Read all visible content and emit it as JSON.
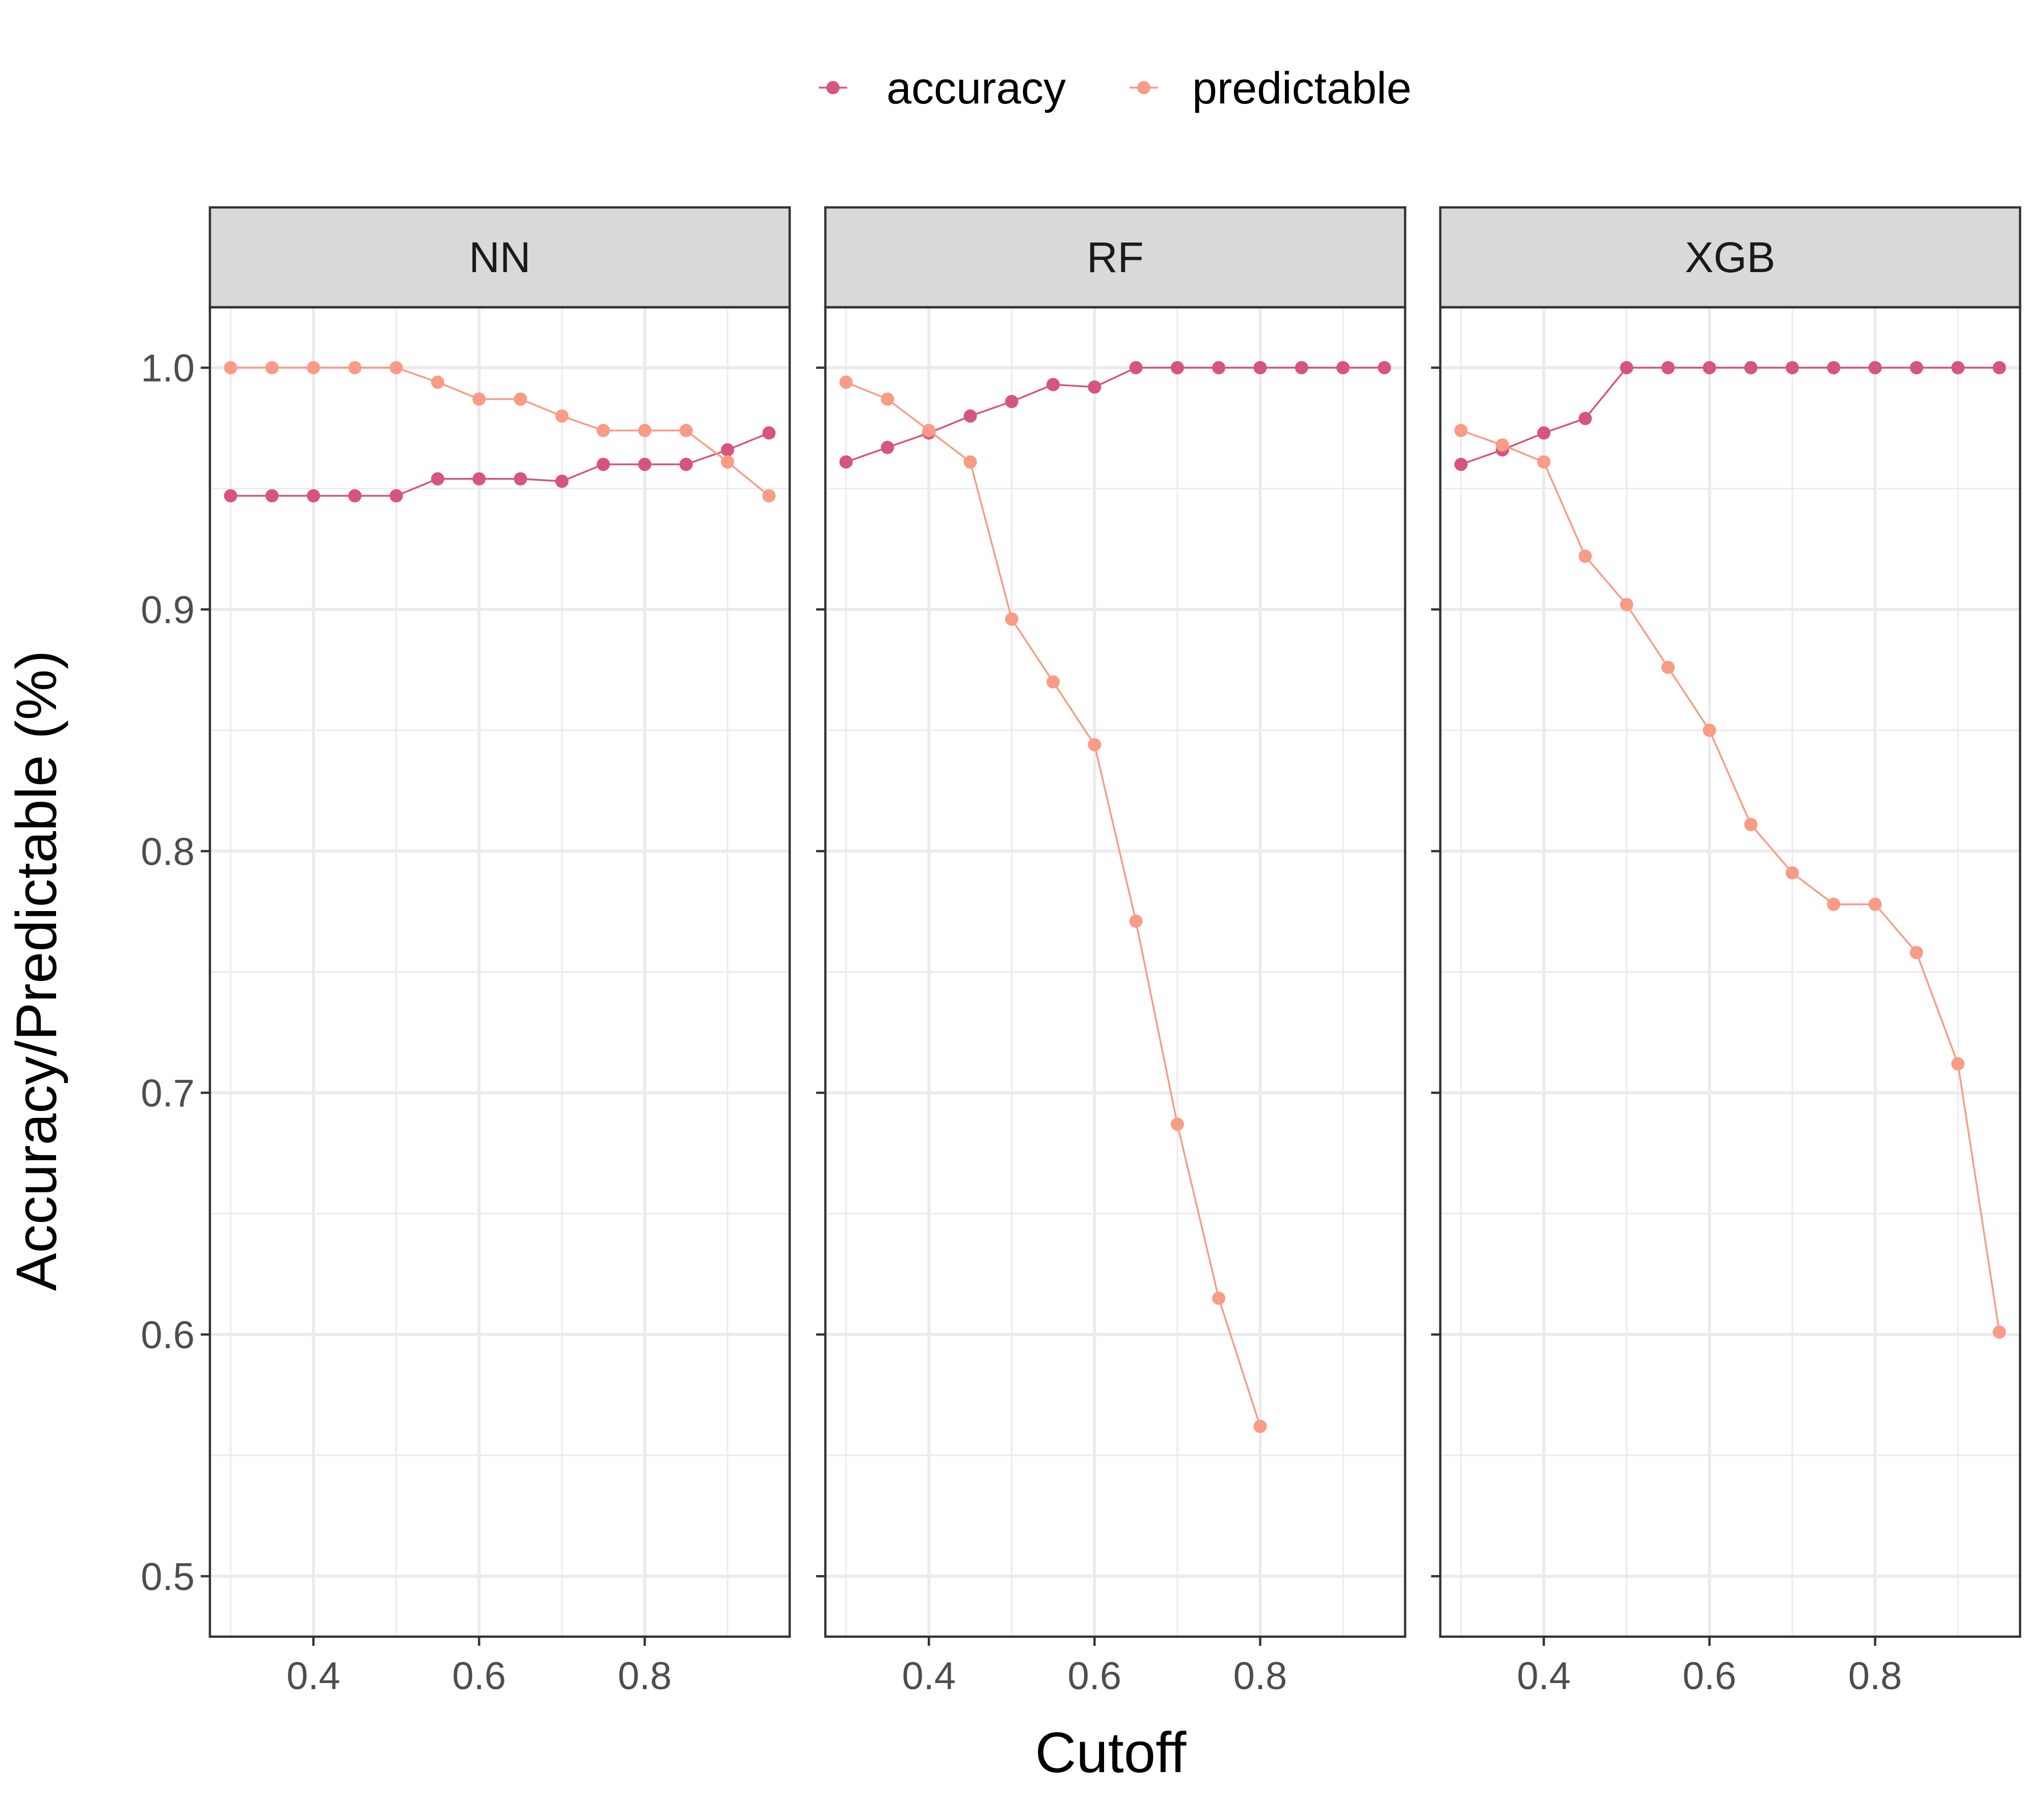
{
  "chart_data": {
    "type": "line",
    "facet_variable": "model",
    "xlabel": "Cutoff",
    "ylabel": "Accuracy/Predictable (%)",
    "xlim": [
      0.275,
      0.975
    ],
    "ylim": [
      0.475,
      1.025
    ],
    "x_ticks": [
      0.4,
      0.6,
      0.8
    ],
    "x_tick_labels": [
      "0.4",
      "0.6",
      "0.8"
    ],
    "y_ticks": [
      0.5,
      0.6,
      0.7,
      0.8,
      0.9,
      1.0
    ],
    "y_tick_labels": [
      "0.5",
      "0.6",
      "0.7",
      "0.8",
      "0.9",
      "1.0"
    ],
    "grid": true,
    "legend_position": "top",
    "series_styles": [
      {
        "name": "accuracy",
        "color": "#d6557a"
      },
      {
        "name": "predictable",
        "color": "#f99b85"
      }
    ],
    "panels": [
      {
        "title": "NN",
        "series": [
          {
            "name": "accuracy",
            "x": [
              0.3,
              0.35,
              0.4,
              0.45,
              0.5,
              0.55,
              0.6,
              0.65,
              0.7,
              0.75,
              0.8,
              0.85,
              0.9,
              0.95
            ],
            "y": [
              0.947,
              0.947,
              0.947,
              0.947,
              0.947,
              0.954,
              0.954,
              0.954,
              0.953,
              0.96,
              0.96,
              0.96,
              0.966,
              0.973
            ]
          },
          {
            "name": "predictable",
            "x": [
              0.3,
              0.35,
              0.4,
              0.45,
              0.5,
              0.55,
              0.6,
              0.65,
              0.7,
              0.75,
              0.8,
              0.85,
              0.9,
              0.95
            ],
            "y": [
              1.0,
              1.0,
              1.0,
              1.0,
              1.0,
              0.994,
              0.987,
              0.987,
              0.98,
              0.974,
              0.974,
              0.974,
              0.961,
              0.947
            ]
          }
        ]
      },
      {
        "title": "RF",
        "series": [
          {
            "name": "accuracy",
            "x": [
              0.3,
              0.35,
              0.4,
              0.45,
              0.5,
              0.55,
              0.6,
              0.65,
              0.7,
              0.75,
              0.8,
              0.85,
              0.9,
              0.95
            ],
            "y": [
              0.961,
              0.967,
              0.973,
              0.98,
              0.986,
              0.993,
              0.992,
              1.0,
              1.0,
              1.0,
              1.0,
              1.0,
              1.0,
              1.0
            ]
          },
          {
            "name": "predictable",
            "x": [
              0.3,
              0.35,
              0.4,
              0.45,
              0.5,
              0.55,
              0.6,
              0.65,
              0.7,
              0.75,
              0.8
            ],
            "y": [
              0.994,
              0.987,
              0.974,
              0.961,
              0.896,
              0.87,
              0.844,
              0.771,
              0.687,
              0.615,
              0.562
            ]
          }
        ]
      },
      {
        "title": "XGB",
        "series": [
          {
            "name": "accuracy",
            "x": [
              0.3,
              0.35,
              0.4,
              0.45,
              0.5,
              0.55,
              0.6,
              0.65,
              0.7,
              0.75,
              0.8,
              0.85,
              0.9,
              0.95
            ],
            "y": [
              0.96,
              0.966,
              0.973,
              0.979,
              1.0,
              1.0,
              1.0,
              1.0,
              1.0,
              1.0,
              1.0,
              1.0,
              1.0,
              1.0
            ]
          },
          {
            "name": "predictable",
            "x": [
              0.3,
              0.35,
              0.4,
              0.45,
              0.5,
              0.55,
              0.6,
              0.65,
              0.7,
              0.75,
              0.8,
              0.85,
              0.9,
              0.95
            ],
            "y": [
              0.974,
              0.968,
              0.961,
              0.922,
              0.902,
              0.876,
              0.85,
              0.811,
              0.791,
              0.778,
              0.778,
              0.758,
              0.712,
              0.601
            ]
          }
        ]
      }
    ]
  }
}
